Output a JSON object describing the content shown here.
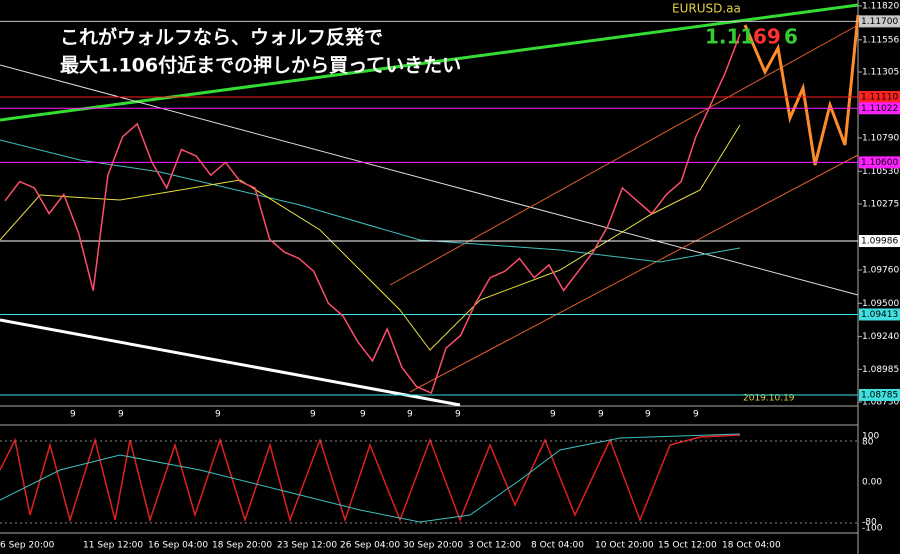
{
  "symbol": "EURUSD.aa",
  "annotation": {
    "line1": "これがウォルフなら、ウォルフ反発で",
    "line2": "最大1.106付近までの押しから買っていきたい",
    "target_a": "1.11",
    "target_b": "69",
    "target_c": "6"
  },
  "date_stamp": "2019.10.19",
  "chart_data": {
    "type": "line",
    "series": [
      {
        "name": "EURUSD",
        "color": "#ff4d6d",
        "values": [
          1.103,
          1.1045,
          1.104,
          1.102,
          1.1035,
          1.1005,
          1.096,
          1.105,
          1.108,
          1.109,
          1.106,
          1.104,
          1.107,
          1.1065,
          1.105,
          1.106,
          1.1045,
          1.104,
          1.1,
          1.099,
          1.0985,
          1.0975,
          1.095,
          1.094,
          1.092,
          1.0905,
          1.093,
          1.09,
          1.0885,
          1.088,
          1.0915,
          1.0925,
          1.095,
          1.097,
          1.0975,
          1.0985,
          1.097,
          1.098,
          1.096,
          1.0975,
          1.099,
          1.101,
          1.104,
          1.103,
          1.102,
          1.1035,
          1.1045,
          1.108,
          1.1105,
          1.113,
          1.116
        ]
      }
    ],
    "ylim": [
      1.0873,
      1.1182
    ],
    "yticks": [
      {
        "value": 1.1182,
        "label": "1.11820"
      },
      {
        "value": 1.11556,
        "label": "1.11556"
      },
      {
        "value": 1.11305,
        "label": "1.11305"
      },
      {
        "value": 1.1079,
        "label": "1.10790"
      },
      {
        "value": 1.1053,
        "label": "1.10530"
      },
      {
        "value": 1.10275,
        "label": "1.10275"
      },
      {
        "value": 1.0976,
        "label": "1.09760"
      },
      {
        "value": 1.095,
        "label": "1.09500"
      },
      {
        "value": 1.0924,
        "label": "1.09240"
      },
      {
        "value": 1.08985,
        "label": "1.08985"
      },
      {
        "value": 1.0873,
        "label": "1.08730"
      }
    ],
    "levels": [
      {
        "value": 1.117,
        "label": "1.11700",
        "color": "#c8c8c8"
      },
      {
        "value": 1.1111,
        "label": "1.11110",
        "color": "#ff2020"
      },
      {
        "value": 1.11022,
        "label": "1.11022",
        "color": "#ff20ff"
      },
      {
        "value": 1.106,
        "label": "1.10600",
        "color": "#ff20ff"
      },
      {
        "value": 1.09986,
        "label": "1.09986",
        "color": "#ffffff"
      },
      {
        "value": 1.09413,
        "label": "1.09413",
        "color": "#40e0e0"
      },
      {
        "value": 1.08785,
        "label": "1.08785",
        "color": "#40e0e0"
      }
    ],
    "x_labels": [
      "6 Sep 20:00",
      "11 Sep 12:00",
      "16 Sep 04:00",
      "18 Sep 20:00",
      "23 Sep 12:00",
      "26 Sep 04:00",
      "30 Sep 20:00",
      "3 Oct 12:00",
      "8 Oct 04:00",
      "10 Oct 20:00",
      "15 Oct 12:00",
      "18 Oct 04:00"
    ],
    "period_marks": [
      "9",
      "9",
      "9",
      "9",
      "9",
      "9",
      "9",
      "9",
      "9",
      "9",
      "9"
    ],
    "osc_labels": [
      "100",
      "80",
      "0.00",
      "-80",
      "-100"
    ]
  }
}
